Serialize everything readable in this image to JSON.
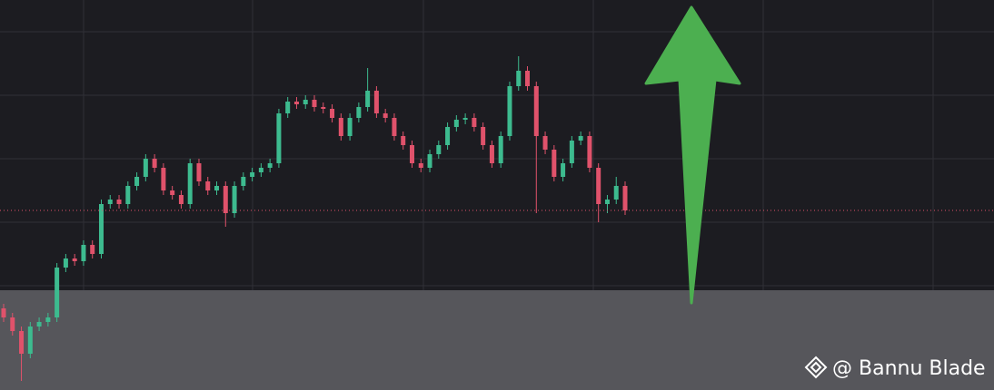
{
  "chart_data": {
    "type": "candlestick",
    "open": [
      90,
      80,
      65,
      40,
      70,
      75,
      80,
      135,
      145,
      142,
      160,
      150,
      205,
      210,
      205,
      225,
      235,
      255,
      245,
      220,
      215,
      205,
      250,
      230,
      220,
      225,
      195,
      225,
      235,
      240,
      245,
      250,
      305,
      318,
      315,
      320,
      312,
      310,
      300,
      280,
      300,
      312,
      330,
      305,
      300,
      280,
      270,
      250,
      245,
      260,
      270,
      290,
      298,
      300,
      290,
      270,
      250,
      280,
      335,
      352,
      335,
      280,
      265,
      235,
      250,
      275,
      280,
      245,
      205,
      210,
      225
    ],
    "high": [
      95,
      85,
      70,
      75,
      80,
      85,
      140,
      150,
      150,
      165,
      165,
      210,
      215,
      215,
      230,
      240,
      260,
      260,
      250,
      225,
      220,
      255,
      255,
      235,
      230,
      230,
      230,
      240,
      245,
      250,
      255,
      310,
      323,
      323,
      325,
      325,
      317,
      315,
      305,
      305,
      317,
      355,
      335,
      310,
      305,
      285,
      275,
      255,
      265,
      275,
      295,
      303,
      305,
      305,
      295,
      275,
      285,
      340,
      368,
      357,
      340,
      285,
      270,
      255,
      280,
      285,
      285,
      250,
      215,
      235,
      230
    ],
    "low": [
      75,
      60,
      10,
      35,
      65,
      70,
      75,
      130,
      137,
      137,
      145,
      145,
      200,
      200,
      200,
      220,
      230,
      240,
      215,
      210,
      200,
      200,
      225,
      215,
      215,
      180,
      190,
      220,
      230,
      235,
      240,
      245,
      300,
      310,
      310,
      307,
      305,
      295,
      275,
      275,
      295,
      307,
      300,
      295,
      275,
      265,
      245,
      240,
      240,
      255,
      265,
      285,
      293,
      285,
      265,
      245,
      245,
      275,
      330,
      330,
      195,
      260,
      230,
      230,
      245,
      270,
      240,
      185,
      195,
      205,
      193
    ],
    "close": [
      80,
      65,
      40,
      70,
      75,
      80,
      135,
      145,
      142,
      160,
      150,
      205,
      210,
      205,
      225,
      235,
      255,
      245,
      220,
      215,
      205,
      250,
      230,
      220,
      225,
      195,
      225,
      235,
      240,
      245,
      250,
      305,
      318,
      315,
      320,
      312,
      310,
      300,
      280,
      300,
      312,
      330,
      305,
      300,
      280,
      270,
      250,
      245,
      260,
      270,
      290,
      298,
      300,
      290,
      270,
      250,
      280,
      335,
      352,
      335,
      280,
      265,
      235,
      250,
      275,
      280,
      245,
      205,
      210,
      225,
      198
    ],
    "up_color": "#3dbb8f",
    "down_color": "#e0526b",
    "ylim": [
      0,
      430
    ],
    "yticks": [
      45,
      115,
      185,
      255,
      325,
      395
    ],
    "grid": true,
    "watermark": "@ Bannu Blade"
  }
}
